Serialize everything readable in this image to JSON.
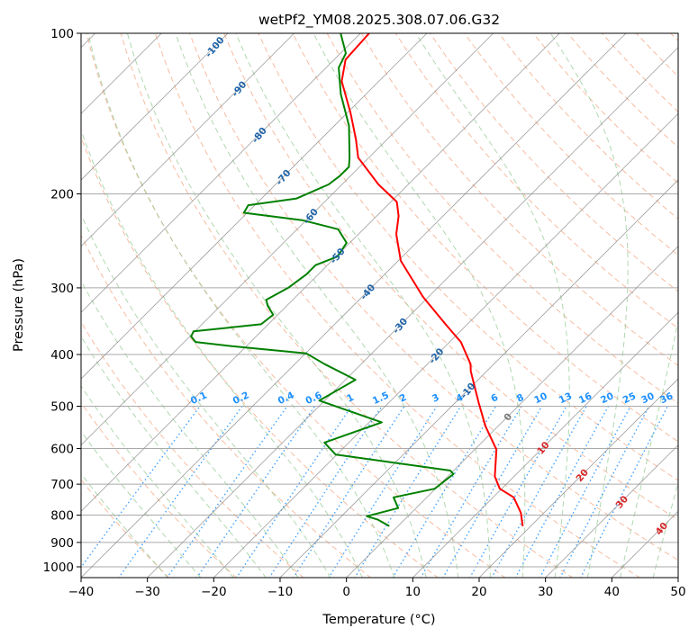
{
  "chart_data": {
    "type": "line",
    "subtype": "skew-t log-p",
    "title": "wetPf2_YM08.2025.308.07.06.G32",
    "xlabel": "Temperature (°C)",
    "ylabel": "Pressure (hPa)",
    "xlim": [
      -40,
      50
    ],
    "ylim": [
      1050,
      100
    ],
    "yscale": "log",
    "grid": true,
    "x_ticks": [
      "−40",
      "−30",
      "−20",
      "−10",
      "0",
      "10",
      "20",
      "30",
      "40",
      "50"
    ],
    "x_tick_values": [
      -40,
      -30,
      -20,
      -10,
      0,
      10,
      20,
      30,
      40,
      50
    ],
    "y_ticks": [
      "100",
      "200",
      "300",
      "400",
      "500",
      "600",
      "700",
      "800",
      "900",
      "1000"
    ],
    "y_tick_values": [
      100,
      200,
      300,
      400,
      500,
      600,
      700,
      800,
      900,
      1000
    ],
    "isotherm_labels": [
      {
        "text": "-100",
        "value": -100,
        "color": "#1f64a8"
      },
      {
        "text": "-90",
        "value": -90,
        "color": "#1f64a8"
      },
      {
        "text": "-80",
        "value": -80,
        "color": "#1f64a8"
      },
      {
        "text": "-70",
        "value": -70,
        "color": "#1f64a8"
      },
      {
        "text": "-60",
        "value": -60,
        "color": "#1f64a8"
      },
      {
        "text": "-50",
        "value": -50,
        "color": "#1f64a8"
      },
      {
        "text": "-40",
        "value": -40,
        "color": "#1f64a8"
      },
      {
        "text": "-30",
        "value": -30,
        "color": "#1f64a8"
      },
      {
        "text": "-20",
        "value": -20,
        "color": "#1f64a8"
      },
      {
        "text": "-10",
        "value": -10,
        "color": "#1f64a8"
      },
      {
        "text": "0",
        "value": 0,
        "color": "#777777"
      },
      {
        "text": "10",
        "value": 10,
        "color": "#d62728"
      },
      {
        "text": "20",
        "value": 20,
        "color": "#d62728"
      },
      {
        "text": "30",
        "value": 30,
        "color": "#d62728"
      },
      {
        "text": "40",
        "value": 40,
        "color": "#d62728"
      }
    ],
    "mixing_ratio_labels": [
      "0.1",
      "0.2",
      "0.4",
      "0.6",
      "1",
      "1.5",
      "2",
      "3",
      "4",
      "6",
      "8",
      "10",
      "13",
      "16",
      "20",
      "25",
      "30",
      "36"
    ],
    "mixing_ratio_values": [
      0.1,
      0.2,
      0.4,
      0.6,
      1,
      1.5,
      2,
      3,
      4,
      6,
      8,
      10,
      13,
      16,
      20,
      25,
      30,
      36
    ],
    "series": [
      {
        "name": "Temperature",
        "color": "#ff0000",
        "pressure": [
          839,
          792,
          741,
          714,
          677,
          603,
          545,
          492,
          430,
          417,
          379,
          351,
          312,
          267,
          238,
          220,
          207,
          192,
          171,
          158,
          141,
          123,
          112,
          100
        ],
        "values": [
          18.8,
          16.5,
          13.1,
          9.7,
          7.1,
          3.3,
          -1.9,
          -6.5,
          -12.4,
          -13.5,
          -18.3,
          -23.3,
          -30.8,
          -39.6,
          -44.3,
          -46.7,
          -49.1,
          -54.5,
          -61.6,
          -64.7,
          -69.5,
          -75.6,
          -78.3,
          -78.7
        ]
      },
      {
        "name": "Dewpoint",
        "color": "#008000",
        "pressure": [
          839,
          816,
          804,
          776,
          741,
          714,
          670,
          660,
          616,
          585,
          536,
          488,
          446,
          417,
          398,
          386,
          379,
          370,
          362,
          351,
          337,
          324,
          316,
          300,
          283,
          272,
          262,
          247,
          233,
          224,
          217,
          210,
          204,
          192,
          185,
          178,
          171,
          149,
          130,
          116,
          109,
          100
        ],
        "values": [
          -1.3,
          -4.0,
          -6.2,
          -2.7,
          -5.0,
          -0.1,
          0.5,
          -0.5,
          -20.2,
          -23.7,
          -18.1,
          -30.8,
          -28.5,
          -35.5,
          -39.9,
          -52.2,
          -58.3,
          -59.8,
          -60.2,
          -51.1,
          -50.7,
          -52.9,
          -54.0,
          -52.5,
          -51.8,
          -51.8,
          -49.8,
          -50.5,
          -53.8,
          -60.6,
          -70.5,
          -71.0,
          -64.7,
          -62.0,
          -61.6,
          -61.6,
          -62.9,
          -67.8,
          -73.8,
          -78.1,
          -79.2,
          -83.0
        ]
      }
    ],
    "colors": {
      "dry_adiabat": "#f4a582",
      "moist_adiabat": "#8fc88f",
      "mixing_ratio": "#1e90ff",
      "grid": "#aaaaaa"
    }
  }
}
